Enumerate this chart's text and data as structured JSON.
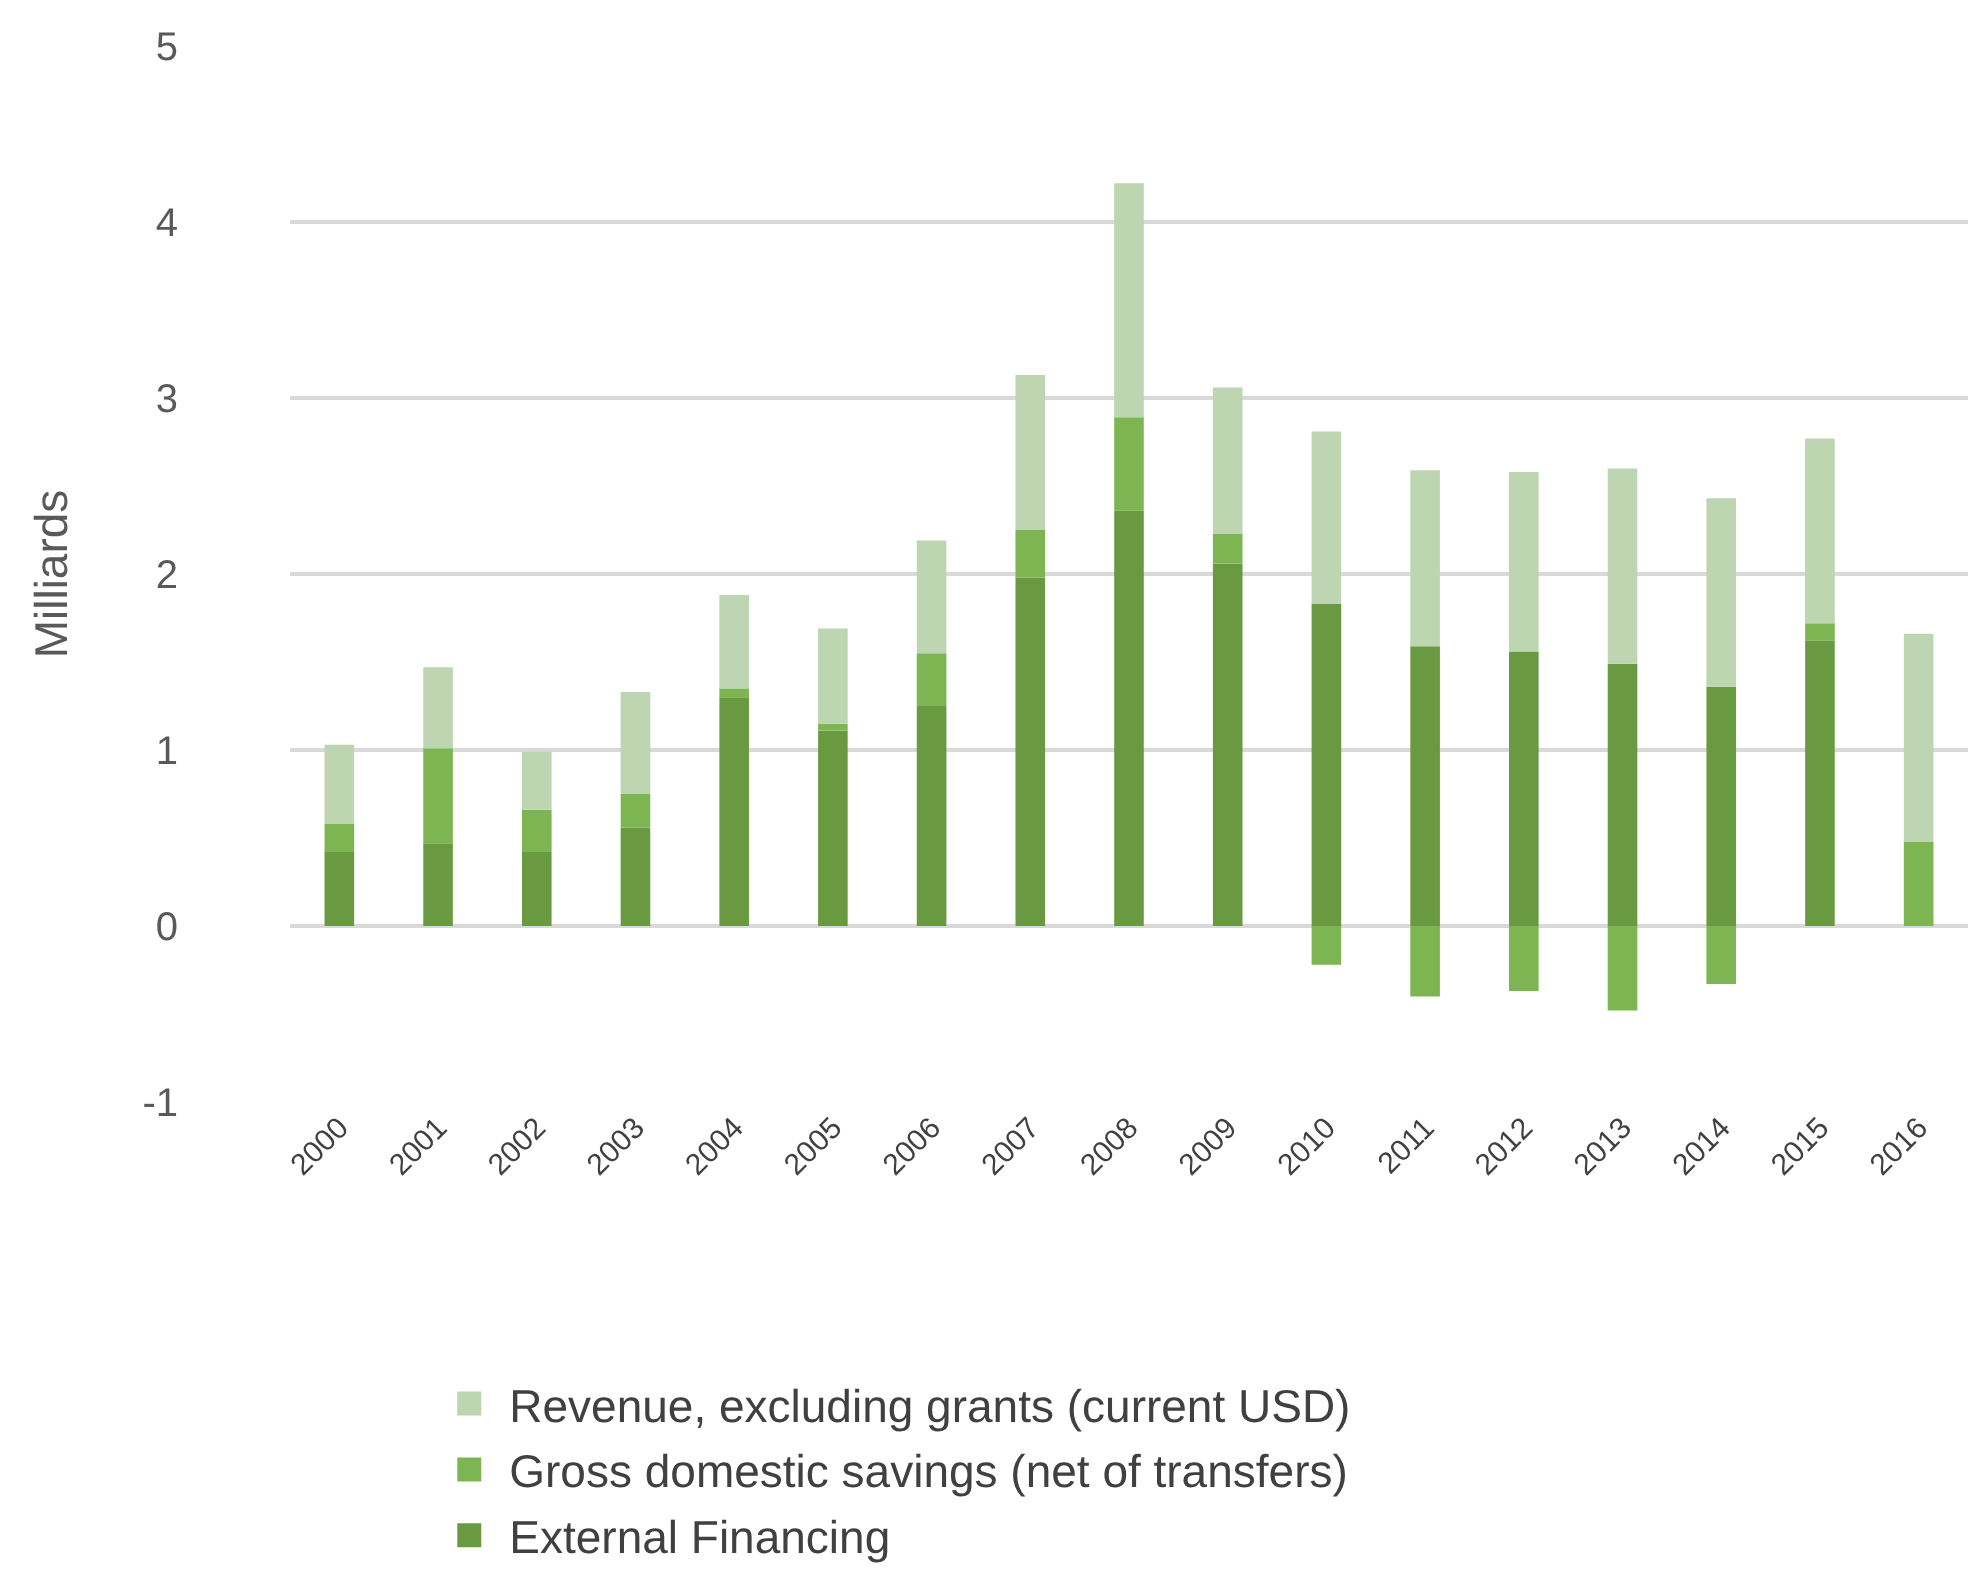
{
  "chart_data": {
    "type": "bar",
    "stacked": true,
    "ylabel": "Milliards",
    "categories": [
      "2000",
      "2001",
      "2002",
      "2003",
      "2004",
      "2005",
      "2006",
      "2007",
      "2008",
      "2009",
      "2010",
      "2011",
      "2012",
      "2013",
      "2014",
      "2015",
      "2016"
    ],
    "series": [
      {
        "name": "External Financing",
        "color": "#699a42",
        "values": [
          0.42,
          0.47,
          0.42,
          0.56,
          1.3,
          1.11,
          1.25,
          1.98,
          2.36,
          2.06,
          1.83,
          1.59,
          1.56,
          1.49,
          1.36,
          1.62,
          0
        ]
      },
      {
        "name": "Gross domestic savings (net of transfers)",
        "color": "#7db552",
        "values": [
          0.16,
          0.54,
          0.24,
          0.19,
          0.05,
          0.04,
          0.3,
          0.27,
          0.53,
          0.17,
          -0.22,
          -0.4,
          -0.37,
          -0.48,
          -0.33,
          0.1,
          0.48
        ]
      },
      {
        "name": "Revenue, excluding grants (current USD)",
        "color": "#bdd5b0",
        "values": [
          0.45,
          0.46,
          0.33,
          0.58,
          0.53,
          0.54,
          0.64,
          0.88,
          1.33,
          0.83,
          0.98,
          1.0,
          1.02,
          1.11,
          1.07,
          1.05,
          1.18
        ]
      }
    ],
    "ylim": [
      -1,
      5
    ],
    "yticks": [
      -1,
      0,
      1,
      2,
      3,
      4,
      5
    ],
    "grid": "y",
    "legend": "bottom"
  }
}
